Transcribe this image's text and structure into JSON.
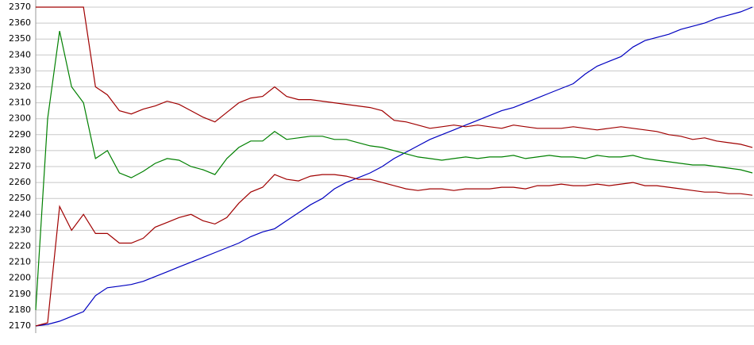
{
  "chart_data": {
    "type": "line",
    "ylim": [
      2170,
      2370
    ],
    "yticks": [
      2170,
      2180,
      2190,
      2200,
      2210,
      2220,
      2230,
      2240,
      2250,
      2260,
      2270,
      2280,
      2290,
      2300,
      2310,
      2320,
      2330,
      2340,
      2350,
      2360,
      2370
    ],
    "grid": true,
    "series": [
      {
        "color": "#0000c0",
        "values": [
          2170,
          2171,
          2173,
          2176,
          2179,
          2189,
          2194,
          2195,
          2196,
          2198,
          2201,
          2204,
          2207,
          2210,
          2213,
          2216,
          2219,
          2222,
          2226,
          2229,
          2231,
          2236,
          2241,
          2246,
          2250,
          2256,
          2260,
          2263,
          2266,
          2270,
          2275,
          2279,
          2283,
          2287,
          2290,
          2293,
          2296,
          2299,
          2302,
          2305,
          2307,
          2310,
          2313,
          2316,
          2319,
          2322,
          2328,
          2333,
          2336,
          2339,
          2345,
          2349,
          2351,
          2353,
          2356,
          2358,
          2360,
          2363,
          2365,
          2367,
          2370
        ]
      },
      {
        "color": "#a00000",
        "values": [
          2370,
          2370,
          2370,
          2370,
          2370,
          2320,
          2315,
          2305,
          2303,
          2306,
          2308,
          2311,
          2309,
          2305,
          2301,
          2298,
          2304,
          2310,
          2313,
          2314,
          2320,
          2314,
          2312,
          2312,
          2311,
          2310,
          2309,
          2308,
          2307,
          2305,
          2299,
          2298,
          2296,
          2294,
          2295,
          2296,
          2295,
          2296,
          2295,
          2294,
          2296,
          2295,
          2294,
          2294,
          2294,
          2295,
          2294,
          2293,
          2294,
          2295,
          2294,
          2293,
          2292,
          2290,
          2289,
          2287,
          2288,
          2286,
          2285,
          2284,
          2282
        ]
      },
      {
        "color": "#008000",
        "values": [
          2180,
          2300,
          2355,
          2320,
          2310,
          2275,
          2280,
          2266,
          2263,
          2267,
          2272,
          2275,
          2274,
          2270,
          2268,
          2265,
          2275,
          2282,
          2286,
          2286,
          2292,
          2287,
          2288,
          2289,
          2289,
          2287,
          2287,
          2285,
          2283,
          2282,
          2280,
          2278,
          2276,
          2275,
          2274,
          2275,
          2276,
          2275,
          2276,
          2276,
          2277,
          2275,
          2276,
          2277,
          2276,
          2276,
          2275,
          2277,
          2276,
          2276,
          2277,
          2275,
          2274,
          2273,
          2272,
          2271,
          2271,
          2270,
          2269,
          2268,
          2266
        ]
      },
      {
        "color": "#a00000",
        "values": [
          2170,
          2172,
          2245,
          2230,
          2240,
          2228,
          2228,
          2222,
          2222,
          2225,
          2232,
          2235,
          2238,
          2240,
          2236,
          2234,
          2238,
          2247,
          2254,
          2257,
          2265,
          2262,
          2261,
          2264,
          2265,
          2265,
          2264,
          2262,
          2262,
          2260,
          2258,
          2256,
          2255,
          2256,
          2256,
          2255,
          2256,
          2256,
          2256,
          2257,
          2257,
          2256,
          2258,
          2258,
          2259,
          2258,
          2258,
          2259,
          2258,
          2259,
          2260,
          2258,
          2258,
          2257,
          2256,
          2255,
          2254,
          2254,
          2253,
          2253,
          2252
        ]
      }
    ]
  }
}
